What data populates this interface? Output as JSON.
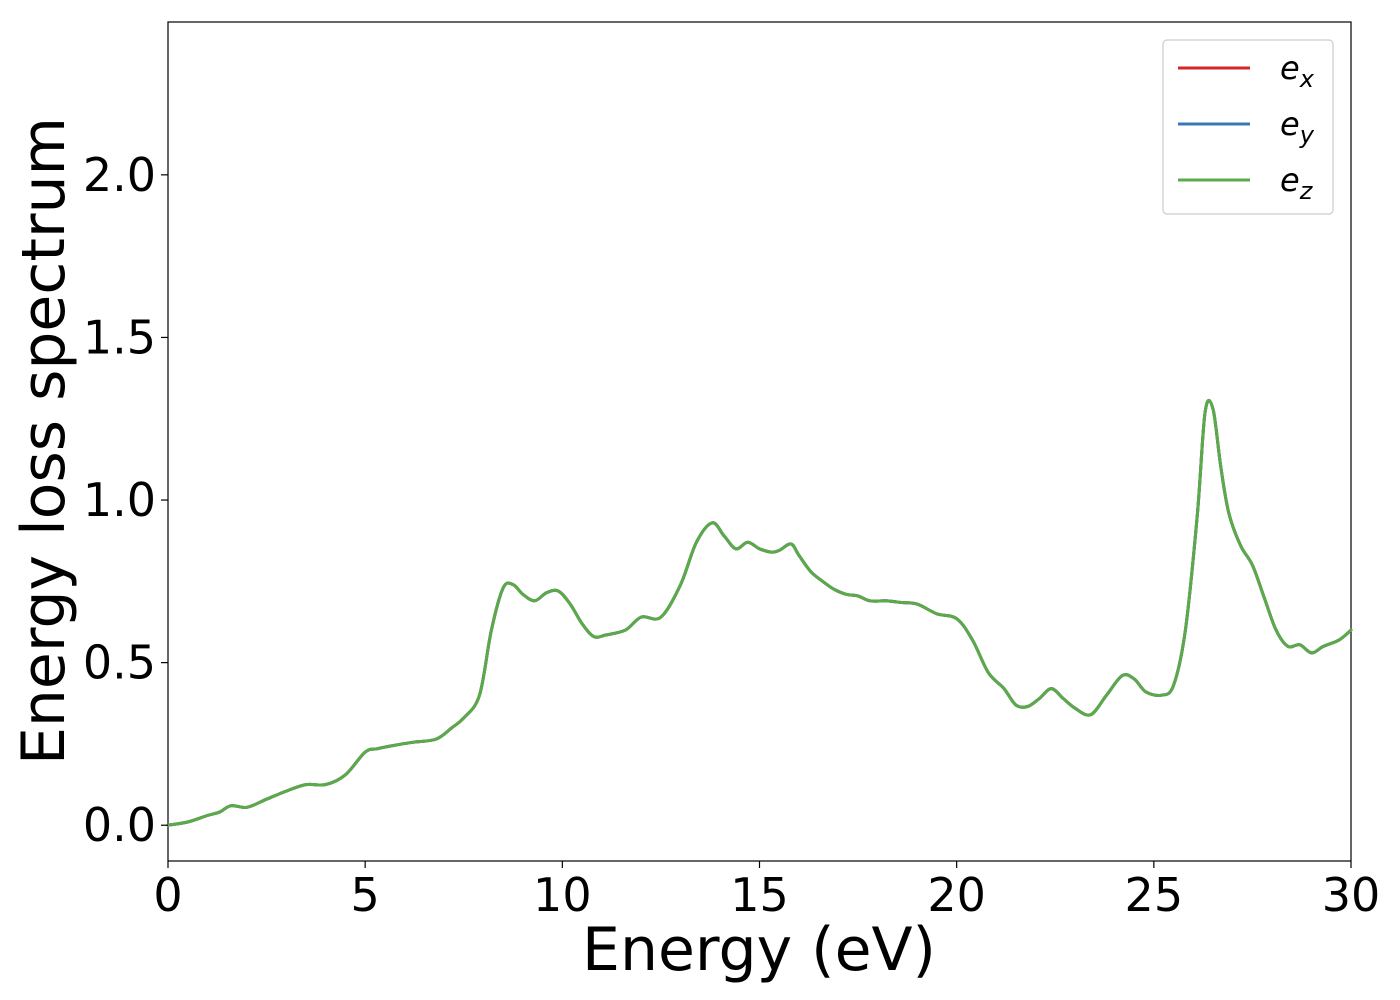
{
  "chart_data": {
    "type": "line",
    "xlabel": "Energy (eV)",
    "ylabel": "Energy loss spectrum",
    "xlim": [
      0,
      30
    ],
    "ylim": [
      -0.11,
      2.47
    ],
    "xticks": [
      0,
      5,
      10,
      15,
      20,
      25,
      30
    ],
    "xtick_labels": [
      "0",
      "5",
      "10",
      "15",
      "20",
      "25",
      "30"
    ],
    "yticks": [
      0.0,
      0.5,
      1.0,
      1.5,
      2.0
    ],
    "ytick_labels": [
      "0.0",
      "0.5",
      "1.0",
      "1.5",
      "2.0"
    ],
    "grid": false,
    "legend_position": "top-right",
    "x": [
      0,
      0.5,
      1.0,
      1.3,
      1.6,
      2.0,
      2.5,
      3.0,
      3.5,
      4.0,
      4.5,
      5.0,
      5.3,
      5.7,
      6.2,
      6.8,
      7.2,
      7.5,
      7.9,
      8.2,
      8.5,
      8.75,
      9.0,
      9.3,
      9.6,
      9.9,
      10.2,
      10.5,
      10.8,
      11.1,
      11.6,
      12.0,
      12.5,
      13.0,
      13.4,
      13.8,
      14.1,
      14.4,
      14.7,
      15.0,
      15.3,
      15.5,
      15.8,
      16.0,
      16.3,
      16.6,
      16.9,
      17.2,
      17.5,
      17.8,
      18.2,
      18.6,
      19.0,
      19.5,
      20.0,
      20.4,
      20.8,
      21.2,
      21.5,
      21.8,
      22.1,
      22.4,
      22.7,
      23.0,
      23.4,
      23.8,
      24.2,
      24.5,
      24.8,
      25.2,
      25.5,
      25.8,
      26.1,
      26.3,
      26.5,
      26.7,
      26.9,
      27.2,
      27.5,
      27.8,
      28.1,
      28.4,
      28.7,
      29.0,
      29.3,
      29.7,
      30.0
    ],
    "series": [
      {
        "name": "e_x",
        "color": "#d62728",
        "values": [
          0.0,
          0.01,
          0.03,
          0.04,
          0.06,
          0.055,
          0.08,
          0.105,
          0.125,
          0.125,
          0.155,
          0.225,
          0.235,
          0.245,
          0.255,
          0.265,
          0.3,
          0.33,
          0.4,
          0.6,
          0.73,
          0.74,
          0.71,
          0.69,
          0.715,
          0.72,
          0.68,
          0.62,
          0.58,
          0.585,
          0.6,
          0.64,
          0.64,
          0.74,
          0.87,
          0.93,
          0.89,
          0.85,
          0.87,
          0.85,
          0.84,
          0.845,
          0.865,
          0.83,
          0.78,
          0.75,
          0.725,
          0.71,
          0.705,
          0.69,
          0.69,
          0.685,
          0.68,
          0.65,
          0.635,
          0.57,
          0.47,
          0.42,
          0.37,
          0.365,
          0.39,
          0.42,
          0.39,
          0.36,
          0.34,
          0.4,
          0.46,
          0.45,
          0.41,
          0.4,
          0.43,
          0.6,
          0.95,
          1.27,
          1.28,
          1.1,
          0.96,
          0.86,
          0.8,
          0.7,
          0.6,
          0.55,
          0.555,
          0.53,
          0.55,
          0.57,
          0.6
        ]
      },
      {
        "name": "e_y",
        "color": "#3a78b5",
        "values": [
          0.0,
          0.01,
          0.03,
          0.04,
          0.06,
          0.055,
          0.08,
          0.105,
          0.125,
          0.125,
          0.155,
          0.225,
          0.235,
          0.245,
          0.255,
          0.265,
          0.3,
          0.33,
          0.4,
          0.6,
          0.73,
          0.74,
          0.71,
          0.69,
          0.715,
          0.72,
          0.68,
          0.62,
          0.58,
          0.585,
          0.6,
          0.64,
          0.64,
          0.74,
          0.87,
          0.93,
          0.89,
          0.85,
          0.87,
          0.85,
          0.84,
          0.845,
          0.865,
          0.83,
          0.78,
          0.75,
          0.725,
          0.71,
          0.705,
          0.69,
          0.69,
          0.685,
          0.68,
          0.65,
          0.635,
          0.57,
          0.47,
          0.42,
          0.37,
          0.365,
          0.39,
          0.42,
          0.39,
          0.36,
          0.34,
          0.4,
          0.46,
          0.45,
          0.41,
          0.4,
          0.43,
          0.6,
          0.95,
          1.27,
          1.28,
          1.1,
          0.96,
          0.86,
          0.8,
          0.7,
          0.6,
          0.55,
          0.555,
          0.53,
          0.55,
          0.57,
          0.6
        ]
      },
      {
        "name": "e_z",
        "color": "#5aaa4a",
        "values": [
          0.0,
          0.01,
          0.03,
          0.04,
          0.06,
          0.055,
          0.08,
          0.105,
          0.125,
          0.125,
          0.155,
          0.225,
          0.235,
          0.245,
          0.255,
          0.265,
          0.3,
          0.33,
          0.4,
          0.6,
          0.73,
          0.74,
          0.71,
          0.69,
          0.715,
          0.72,
          0.68,
          0.62,
          0.58,
          0.585,
          0.6,
          0.64,
          0.64,
          0.74,
          0.87,
          0.93,
          0.89,
          0.85,
          0.87,
          0.85,
          0.84,
          0.845,
          0.865,
          0.83,
          0.78,
          0.75,
          0.725,
          0.71,
          0.705,
          0.69,
          0.69,
          0.685,
          0.68,
          0.65,
          0.635,
          0.57,
          0.47,
          0.42,
          0.37,
          0.365,
          0.39,
          0.42,
          0.39,
          0.36,
          0.34,
          0.4,
          0.46,
          0.45,
          0.41,
          0.4,
          0.43,
          0.6,
          0.95,
          1.27,
          1.28,
          1.1,
          0.96,
          0.86,
          0.8,
          0.7,
          0.6,
          0.55,
          0.555,
          0.53,
          0.55,
          0.57,
          0.6
        ]
      }
    ],
    "legend": [
      {
        "base": "e",
        "sub": "x"
      },
      {
        "base": "e",
        "sub": "y"
      },
      {
        "base": "e",
        "sub": "z"
      }
    ]
  }
}
